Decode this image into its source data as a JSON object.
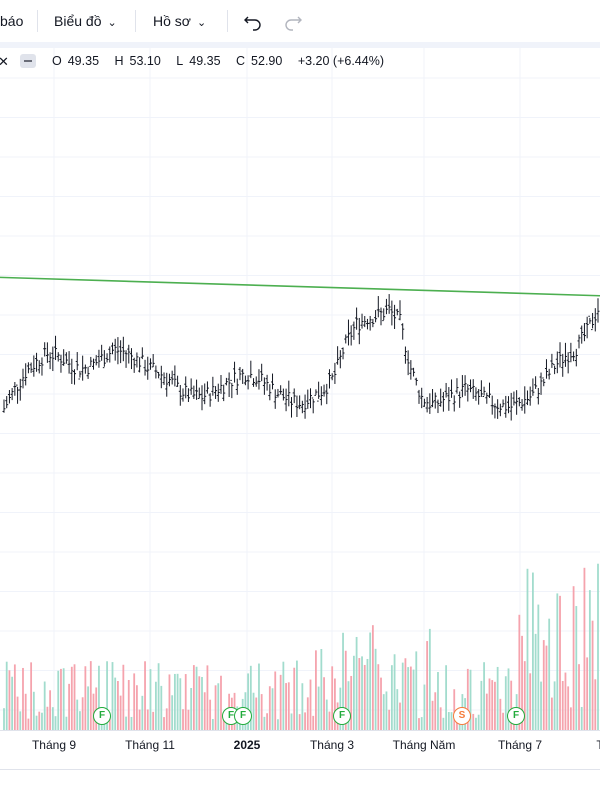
{
  "toolbar": {
    "alert_label": "báo",
    "chart_menu": "Biểu đồ",
    "profile_menu": "Hồ sơ",
    "undo_icon": "undo-icon",
    "redo_icon": "redo-icon"
  },
  "legend": {
    "x_icon": "close-icon",
    "open_label": "O",
    "open": "49.35",
    "high_label": "H",
    "high": "53.10",
    "low_label": "L",
    "low": "49.35",
    "close_label": "C",
    "close": "52.90",
    "change": "+3.20 (+6.44%)"
  },
  "chart_data": {
    "type": "bar",
    "title": "",
    "xlabel": "",
    "ylabel": "",
    "x_ticks": [
      "Tháng 9",
      "Tháng 11",
      "2025",
      "Tháng 3",
      "Tháng Năm",
      "Tháng 7",
      "T"
    ],
    "bold_ticks": [
      "2025"
    ],
    "price_series": {
      "name": "",
      "trend": [
        41.0,
        42.5,
        43.8,
        44.6,
        45.2,
        45.0,
        44.4,
        44.0,
        44.3,
        44.9,
        45.5,
        45.3,
        44.8,
        44.2,
        43.8,
        43.2,
        42.4,
        42.0,
        41.9,
        42.3,
        42.8,
        43.3,
        43.7,
        43.4,
        42.8,
        42.1,
        41.6,
        41.4,
        41.9,
        42.4,
        43.4,
        45.8,
        47.4,
        47.9,
        48.1,
        48.5,
        47.6,
        44.0,
        41.8,
        41.3,
        41.7,
        42.1,
        42.5,
        42.0,
        41.6,
        41.3,
        41.1,
        41.5,
        42.0,
        43.0,
        44.2,
        45.0,
        45.6,
        46.8,
        48.6
      ]
    },
    "trend_line": {
      "color": "#4caf50",
      "y_start": 51.0,
      "y_end": 49.6
    },
    "volume_series": {
      "name": "",
      "up_color": "#a2dccd",
      "down_color": "#f5a3ad"
    },
    "events": [
      {
        "type": "F",
        "x_index": 0.17
      },
      {
        "type": "F",
        "x_index": 0.385
      },
      {
        "type": "F",
        "x_index": 0.405
      },
      {
        "type": "F",
        "x_index": 0.57
      },
      {
        "type": "S",
        "x_index": 0.77
      },
      {
        "type": "F",
        "x_index": 0.86
      }
    ],
    "colors": {
      "bar": "#131722",
      "grid": "#f0f3fa"
    }
  }
}
